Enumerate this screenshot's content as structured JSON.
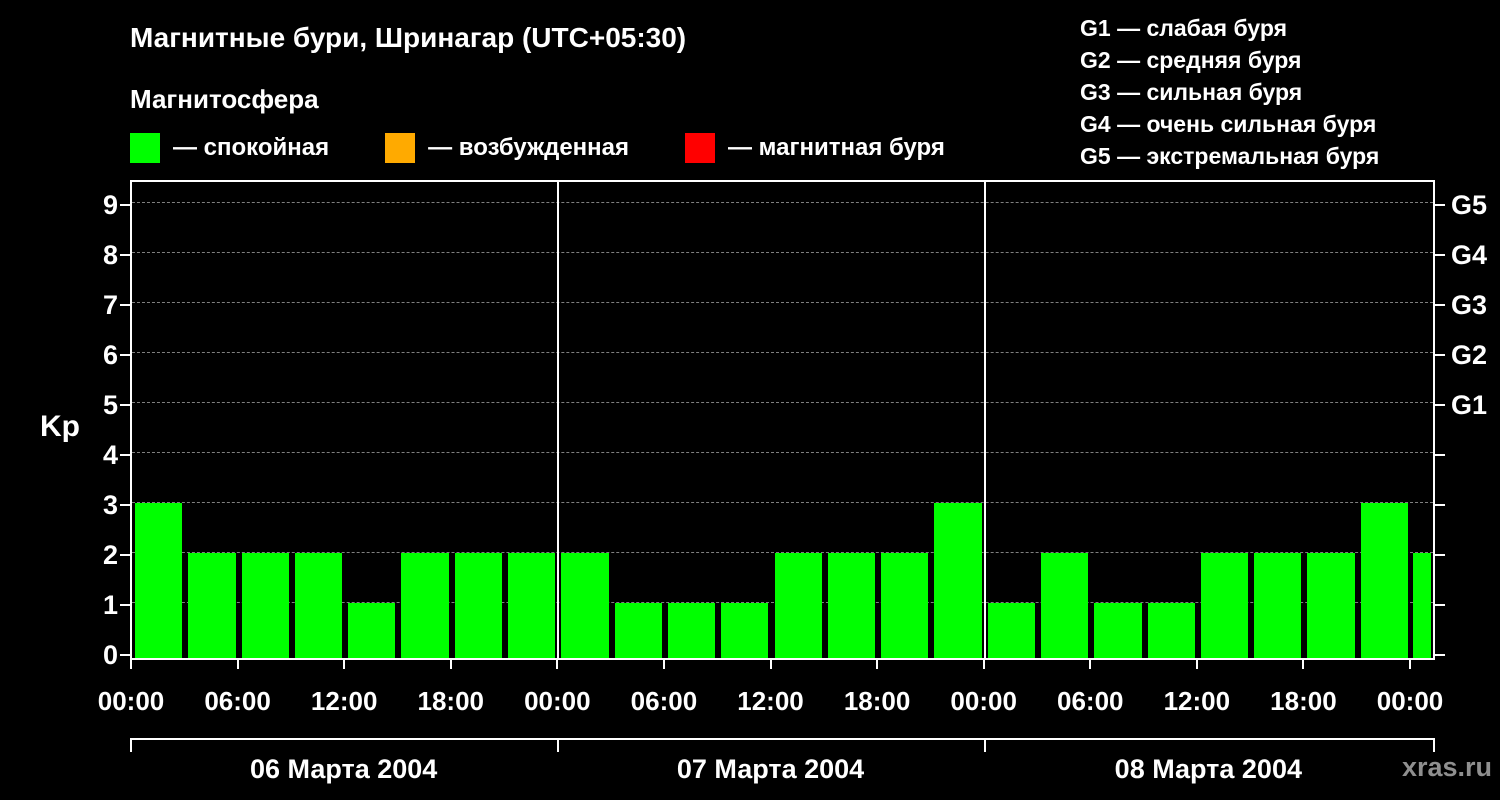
{
  "title": "Магнитные бури, Шринагар (UTC+05:30)",
  "subtitle": "Магнитосфера",
  "legend": [
    {
      "color": "#00ff00",
      "label": "— спокойная"
    },
    {
      "color": "#ffaa00",
      "label": "— возбужденная"
    },
    {
      "color": "#ff0000",
      "label": "— магнитная буря"
    }
  ],
  "g_legend": [
    "G1 — слабая буря",
    "G2 — средняя буря",
    "G3 — сильная буря",
    "G4 — очень сильная буря",
    "G5 — экстремальная буря"
  ],
  "watermark": "xras.ru",
  "chart_data": {
    "type": "bar",
    "title": "Магнитные бури, Шринагар (UTC+05:30)",
    "ylabel": "Kp",
    "ylim": [
      0,
      9
    ],
    "yticks": [
      0,
      1,
      2,
      3,
      4,
      5,
      6,
      7,
      8,
      9
    ],
    "grid": "dashed-horizontal",
    "bar_color": "#00ff00",
    "bar_interval_hours": 3,
    "right_scale": [
      {
        "value": 5,
        "label": "G1"
      },
      {
        "value": 6,
        "label": "G2"
      },
      {
        "value": 7,
        "label": "G3"
      },
      {
        "value": 8,
        "label": "G4"
      },
      {
        "value": 9,
        "label": "G5"
      }
    ],
    "x_tick_labels": [
      "00:00",
      "06:00",
      "12:00",
      "18:00",
      "00:00",
      "06:00",
      "12:00",
      "18:00",
      "00:00",
      "06:00",
      "12:00",
      "18:00",
      "00:00"
    ],
    "days": [
      {
        "date": "06 Марта 2004",
        "values": [
          3,
          2,
          2,
          2,
          1,
          2,
          2,
          2
        ]
      },
      {
        "date": "07 Марта 2004",
        "values": [
          2,
          1,
          1,
          1,
          2,
          2,
          2,
          3
        ]
      },
      {
        "date": "08 Марта 2004",
        "values": [
          1,
          2,
          1,
          1,
          2,
          2,
          2,
          3
        ]
      }
    ],
    "partial_next_bar": 2
  }
}
